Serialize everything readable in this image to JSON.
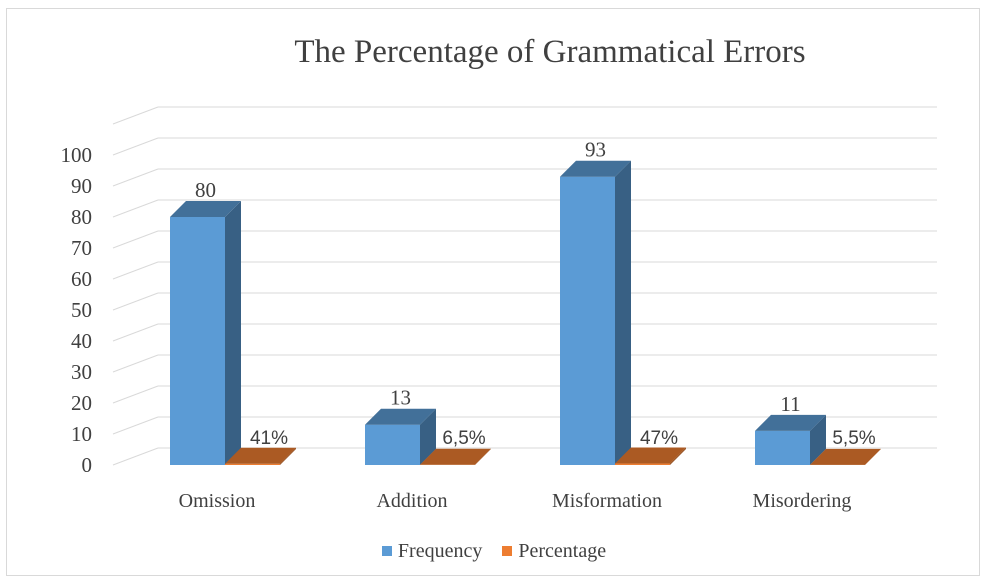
{
  "chart_data": {
    "type": "bar",
    "title": "The Percentage of Grammatical Errors",
    "categories": [
      "Omission",
      "Addition",
      "Misformation",
      "Misordering"
    ],
    "series": [
      {
        "name": "Frequency",
        "values": [
          80,
          13,
          93,
          11
        ],
        "labels": [
          "80",
          "13",
          "93",
          "11"
        ],
        "color": "#5b9bd5"
      },
      {
        "name": "Percentage",
        "values": [
          0.41,
          0.065,
          0.47,
          0.055
        ],
        "labels": [
          "41%",
          "6,5%",
          "47%",
          "5,5%"
        ],
        "color": "#ed7d31"
      }
    ],
    "ylim": [
      0,
      100
    ],
    "yticks": [
      "0",
      "10",
      "20",
      "30",
      "40",
      "50",
      "60",
      "70",
      "80",
      "90",
      "100"
    ],
    "xlabel": "",
    "ylabel": "",
    "grid": true,
    "legend_position": "bottom"
  }
}
